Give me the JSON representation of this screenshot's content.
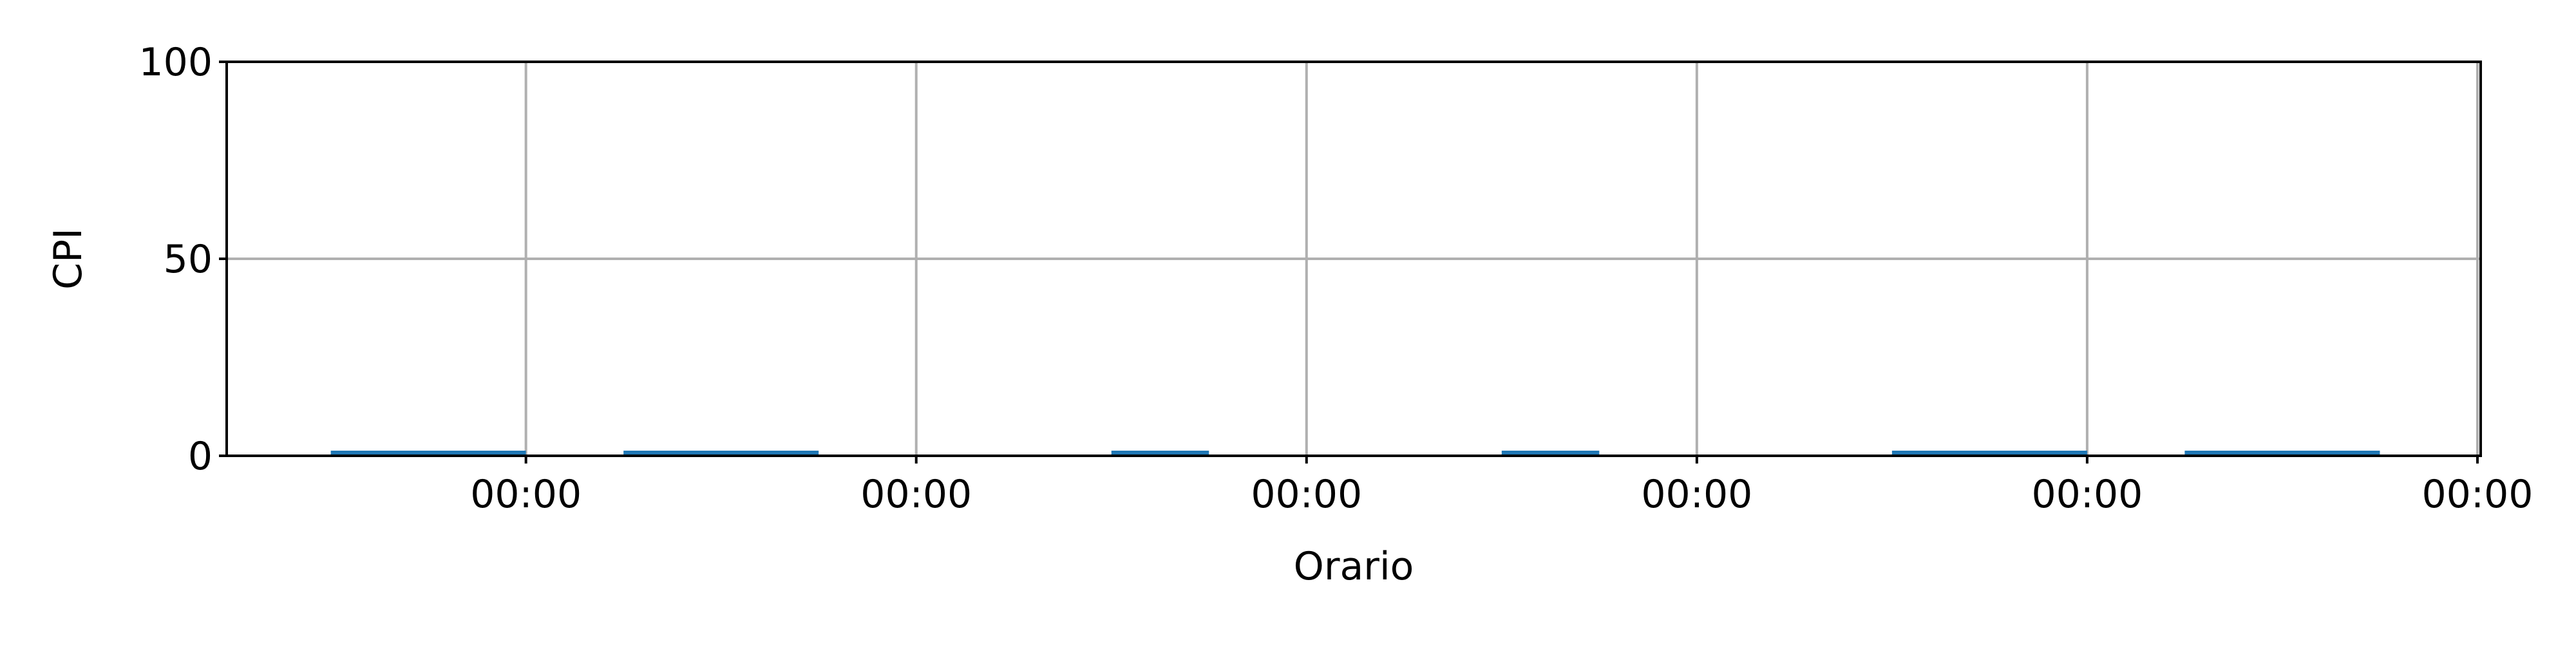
{
  "chart_data": {
    "type": "line",
    "title": "",
    "xlabel": "Orario",
    "ylabel": "CPI",
    "ylim": [
      0,
      100
    ],
    "yticks": [
      0,
      50,
      100
    ],
    "xlim": [
      -0.7667,
      5.0083
    ],
    "xticks": [
      0,
      1,
      2,
      3,
      4,
      5
    ],
    "xtick_labels": [
      "00:00",
      "00:00",
      "00:00",
      "00:00",
      "00:00",
      "00:00"
    ],
    "grid": true,
    "legend": "none",
    "series": [
      {
        "color": "#1f77b4",
        "segments": [
          {
            "x": [
              -0.5,
              0.0
            ],
            "y": [
              0.5,
              0.5
            ]
          },
          {
            "x": [
              0.25,
              0.75
            ],
            "y": [
              0.5,
              0.5
            ]
          },
          {
            "x": [
              1.5,
              1.75
            ],
            "y": [
              0.5,
              0.5
            ]
          },
          {
            "x": [
              2.5,
              2.75
            ],
            "y": [
              0.5,
              0.5
            ]
          },
          {
            "x": [
              3.5,
              4.0
            ],
            "y": [
              0.5,
              0.5
            ]
          },
          {
            "x": [
              4.25,
              4.75
            ],
            "y": [
              0.5,
              0.5
            ]
          }
        ]
      }
    ]
  }
}
